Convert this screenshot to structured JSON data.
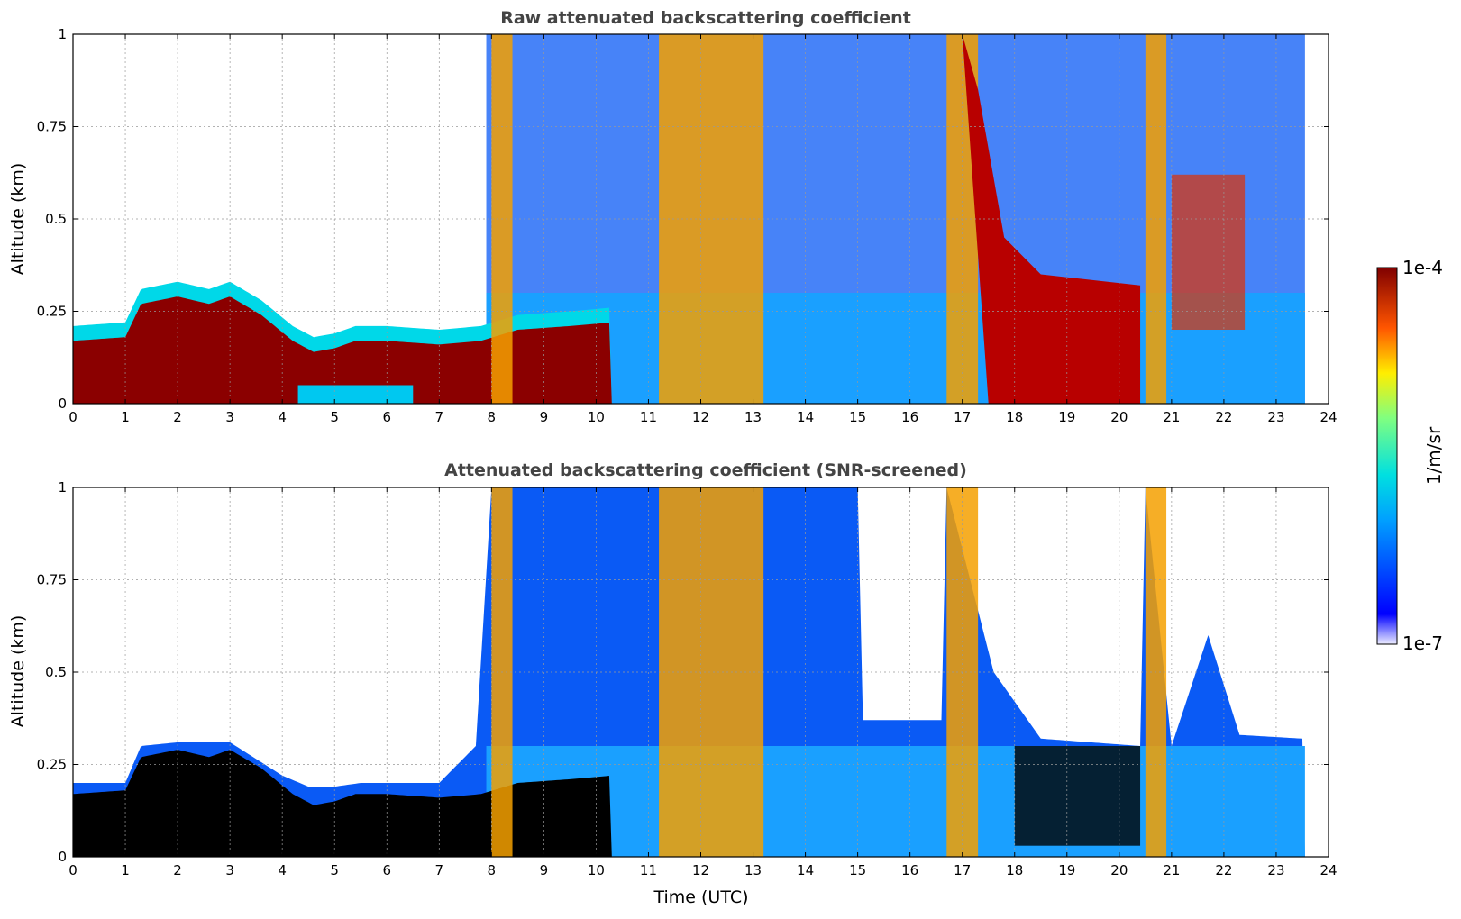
{
  "chart_data": [
    {
      "type": "heatmap",
      "title": "Raw attenuated backscattering coefficient",
      "xlabel": "",
      "ylabel": "Altitude (km)",
      "xlim": [
        0,
        24
      ],
      "ylim": [
        0,
        1
      ],
      "xticks": [
        0,
        1,
        2,
        3,
        4,
        5,
        6,
        7,
        8,
        9,
        10,
        11,
        12,
        13,
        14,
        15,
        16,
        17,
        18,
        19,
        20,
        21,
        22,
        23,
        24
      ],
      "yticks": [
        0,
        0.25,
        0.5,
        0.75,
        1
      ],
      "ytick_labels": [
        "0",
        "0.25",
        "0.5",
        "0.75",
        "1"
      ],
      "grid": true,
      "data_end_hour": 23.55,
      "boundary_layer_top_km": [
        [
          0,
          0.17
        ],
        [
          1,
          0.18
        ],
        [
          1.3,
          0.27
        ],
        [
          2,
          0.29
        ],
        [
          2.6,
          0.27
        ],
        [
          3,
          0.29
        ],
        [
          3.6,
          0.24
        ],
        [
          4.2,
          0.17
        ],
        [
          4.6,
          0.14
        ],
        [
          5,
          0.15
        ],
        [
          5.4,
          0.17
        ],
        [
          6,
          0.17
        ],
        [
          7,
          0.16
        ],
        [
          7.8,
          0.17
        ],
        [
          8.5,
          0.2
        ],
        [
          9.5,
          0.21
        ],
        [
          10.3,
          0.22
        ]
      ],
      "cloud_events_hours": [
        [
          8.0,
          8.4
        ],
        [
          11.2,
          13.2
        ],
        [
          16.7,
          17.3
        ],
        [
          20.5,
          20.9
        ]
      ]
    },
    {
      "type": "heatmap",
      "title": "Attenuated backscattering coefficient (SNR-screened)",
      "xlabel": "Time (UTC)",
      "ylabel": "Altitude (km)",
      "xlim": [
        0,
        24
      ],
      "ylim": [
        0,
        1
      ],
      "xticks": [
        0,
        1,
        2,
        3,
        4,
        5,
        6,
        7,
        8,
        9,
        10,
        11,
        12,
        13,
        14,
        15,
        16,
        17,
        18,
        19,
        20,
        21,
        22,
        23,
        24
      ],
      "yticks": [
        0,
        0.25,
        0.5,
        0.75,
        1
      ],
      "ytick_labels": [
        "0",
        "0.25",
        "0.5",
        "0.75",
        "1"
      ],
      "grid": true,
      "data_end_hour": 23.55,
      "screened_top_km": [
        [
          0,
          0.2
        ],
        [
          1,
          0.2
        ],
        [
          1.3,
          0.3
        ],
        [
          2,
          0.31
        ],
        [
          3,
          0.31
        ],
        [
          4,
          0.22
        ],
        [
          4.5,
          0.19
        ],
        [
          5,
          0.19
        ],
        [
          5.5,
          0.2
        ],
        [
          7,
          0.2
        ],
        [
          7.7,
          0.3
        ],
        [
          8,
          1.0
        ],
        [
          15,
          1.0
        ],
        [
          15.1,
          0.37
        ],
        [
          16.6,
          0.37
        ],
        [
          16.7,
          1.0
        ],
        [
          17.6,
          0.5
        ],
        [
          18.5,
          0.32
        ],
        [
          20.4,
          0.3
        ],
        [
          20.5,
          1.0
        ],
        [
          21,
          0.3
        ],
        [
          21.7,
          0.6
        ],
        [
          22.3,
          0.33
        ],
        [
          23.5,
          0.32
        ]
      ]
    }
  ],
  "colorbar": {
    "min_label": "1e-7",
    "max_label": "1e-4",
    "unit": "1/m/sr",
    "colormap": "jet",
    "scale": "log"
  }
}
